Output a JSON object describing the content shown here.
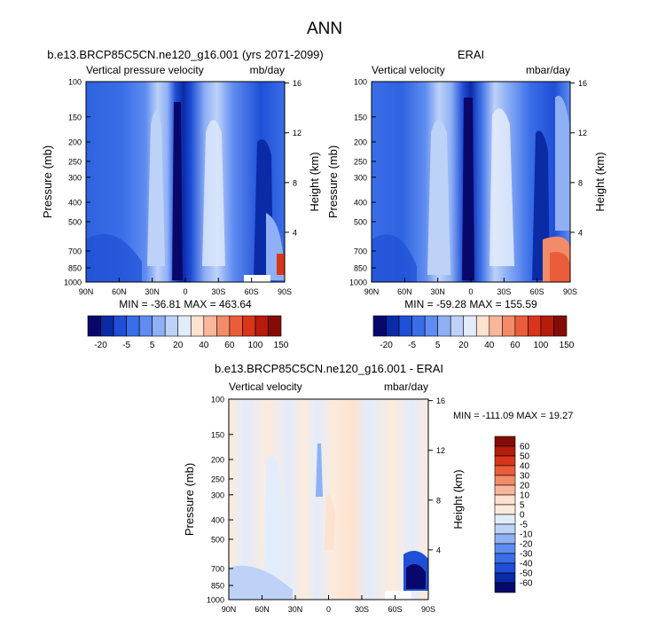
{
  "figure_title": "ANN",
  "chart_data": [
    {
      "type": "heatmap",
      "id": "panel-model",
      "title": "b.e13.BRCP85C5CN.ne120_g16.001 (yrs 2071-2099)",
      "subtitle_left": "Vertical pressure velocity",
      "subtitle_right": "mb/day",
      "ylabel": "Pressure (mb)",
      "ylabel_right": "Height (km)",
      "xticks": [
        "90N",
        "60N",
        "30N",
        "0",
        "30S",
        "60S",
        "90S"
      ],
      "yticks": [
        "100",
        "150",
        "200",
        "250",
        "300",
        "400",
        "500",
        "700",
        "850",
        "1000"
      ],
      "yticks_right": [
        "16",
        "12",
        "8",
        "4"
      ],
      "stats": "MIN = -36.81  MAX = 463.64",
      "colorbar": {
        "labels": [
          "-20",
          "-5",
          "5",
          "20",
          "40",
          "60",
          "100",
          "150"
        ],
        "colors": [
          "#08086b",
          "#0b2aa6",
          "#1f4fd6",
          "#3a6ee8",
          "#5f8cf0",
          "#8fb0f5",
          "#bed2f8",
          "#e3ecfb",
          "#fde2cf",
          "#f8b79b",
          "#f28b69",
          "#ea5d3a",
          "#d8351a",
          "#b51c0c",
          "#850c06"
        ]
      }
    },
    {
      "type": "heatmap",
      "id": "panel-erai",
      "title": "ERAI",
      "subtitle_left": "Vertical velocity",
      "subtitle_right": "mbar/day",
      "ylabel": "Pressure (mb)",
      "ylabel_right": "Height (km)",
      "xticks": [
        "90N",
        "60N",
        "30N",
        "0",
        "30S",
        "60S",
        "90S"
      ],
      "yticks": [
        "100",
        "150",
        "200",
        "250",
        "300",
        "400",
        "500",
        "700",
        "850",
        "1000"
      ],
      "yticks_right": [
        "16",
        "12",
        "8",
        "4"
      ],
      "stats": "MIN = -59.28  MAX = 155.59",
      "colorbar": {
        "labels": [
          "-20",
          "-5",
          "5",
          "20",
          "40",
          "60",
          "100",
          "150"
        ],
        "colors": [
          "#08086b",
          "#0b2aa6",
          "#1f4fd6",
          "#3a6ee8",
          "#5f8cf0",
          "#8fb0f5",
          "#bed2f8",
          "#e3ecfb",
          "#fde2cf",
          "#f8b79b",
          "#f28b69",
          "#ea5d3a",
          "#d8351a",
          "#b51c0c",
          "#850c06"
        ]
      }
    },
    {
      "type": "heatmap",
      "id": "panel-diff",
      "title": "b.e13.BRCP85C5CN.ne120_g16.001 - ERAI",
      "subtitle_left": "Vertical velocity",
      "subtitle_right": "mbar/day",
      "ylabel": "Pressure (mb)",
      "ylabel_right": "Height (km)",
      "xticks": [
        "90N",
        "60N",
        "30N",
        "0",
        "30S",
        "60S",
        "90S"
      ],
      "yticks": [
        "100",
        "150",
        "200",
        "250",
        "300",
        "400",
        "500",
        "700",
        "850",
        "1000"
      ],
      "yticks_right": [
        "16",
        "12",
        "8",
        "4"
      ],
      "stats": "MIN = -111.09  MAX =  19.27",
      "colorbar": {
        "labels": [
          "60",
          "50",
          "40",
          "30",
          "20",
          "10",
          "5",
          "0",
          "-5",
          "-10",
          "-20",
          "-30",
          "-40",
          "-50",
          "-60"
        ],
        "colors": [
          "#850c06",
          "#b51c0c",
          "#d8351a",
          "#ea5d3a",
          "#f28b69",
          "#f8b79b",
          "#fde2cf",
          "#fcebdc",
          "#e3ecfb",
          "#bed2f8",
          "#8fb0f5",
          "#5f8cf0",
          "#3a6ee8",
          "#1f4fd6",
          "#0b2aa6",
          "#08086b"
        ]
      }
    }
  ]
}
